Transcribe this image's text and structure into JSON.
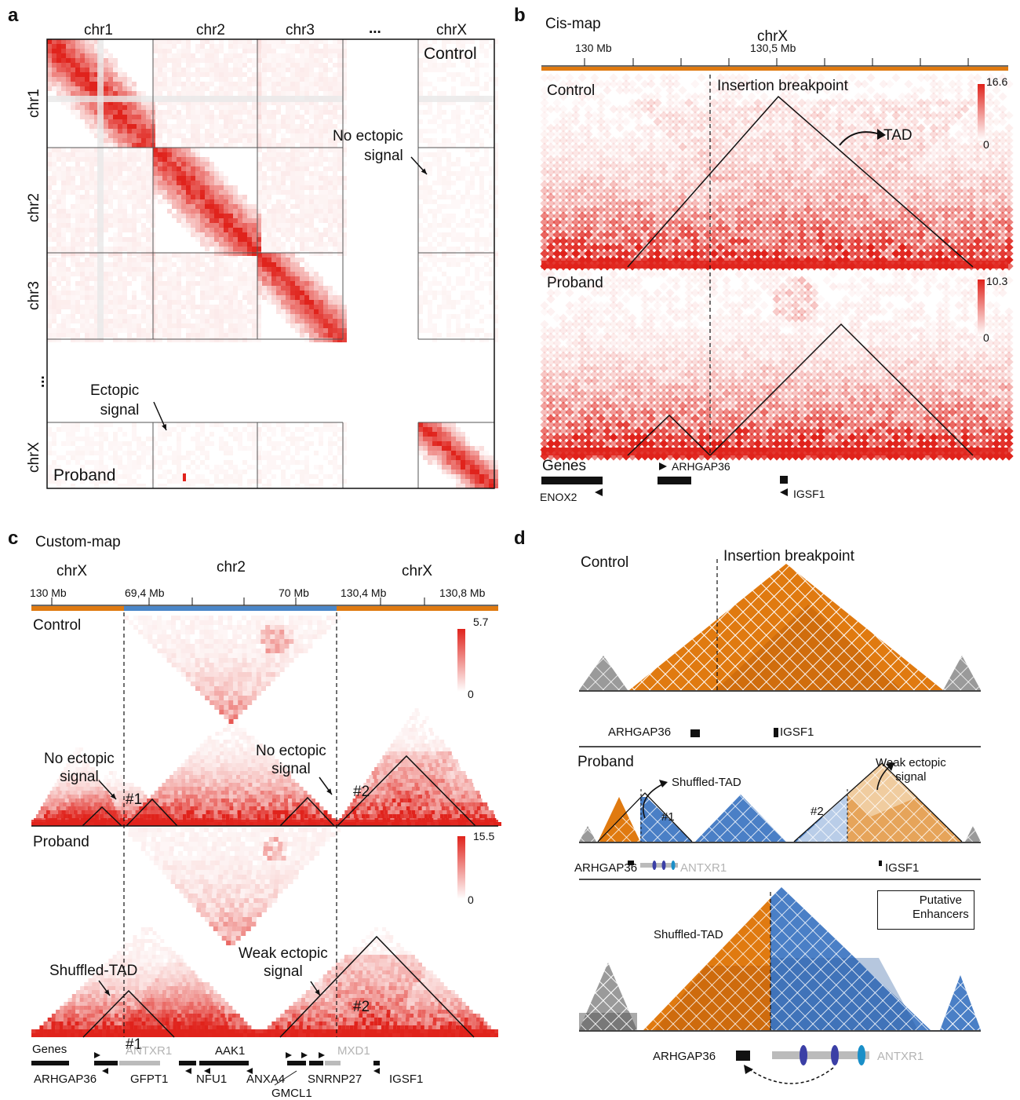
{
  "panels": {
    "a": "a",
    "b": "b",
    "c": "c",
    "d": "d"
  },
  "panel_a": {
    "top_chroms": [
      "chr1",
      "chr2",
      "chr3",
      "...",
      "chrX"
    ],
    "left_chroms": [
      "chr1",
      "chr2",
      "chr3",
      "...",
      "chrX"
    ],
    "control_label": "Control",
    "proband_label": "Proband",
    "no_ectopic_label": "No ectopic\nsignal",
    "ectopic_label": "Ectopic\nsignal"
  },
  "panel_b": {
    "title": "Cis-map",
    "chrom": "chrX",
    "ticks": [
      "130 Mb",
      "130,5 Mb"
    ],
    "control_label": "Control",
    "proband_label": "Proband",
    "breakpoint_label": "Insertion breakpoint",
    "tad_label": "TAD",
    "control_scale": {
      "max": "16.6",
      "min": "0"
    },
    "proband_scale": {
      "max": "10.3",
      "min": "0"
    },
    "genes_title": "Genes",
    "genes": [
      "ARHGAP36",
      "ENOX2",
      "IGSF1"
    ]
  },
  "panel_c": {
    "title": "Custom-map",
    "segments": [
      "chrX",
      "chr2",
      "chrX"
    ],
    "ticks": [
      "130 Mb",
      "69,4 Mb",
      "70 Mb",
      "130,4 Mb",
      "130,8 Mb"
    ],
    "control_label": "Control",
    "proband_label": "Proband",
    "control_scale": {
      "max": "5.7",
      "min": "0"
    },
    "proband_scale": {
      "max": "15.5",
      "min": "0"
    },
    "no_ectopic_1": "No ectopic\nsignal",
    "no_ectopic_2": "No ectopic\nsignal",
    "shuffled_tad": "Shuffled-TAD",
    "weak_ectopic": "Weak ectopic\nsignal",
    "tad1": "#1",
    "tad2": "#2",
    "genes_title": "Genes",
    "genes_black": [
      "ARHGAP36",
      "GFPT1",
      "NFU1",
      "AAK1",
      "ANXA4",
      "GMCL1",
      "SNRNP27",
      "IGSF1"
    ],
    "genes_gray": [
      "ANTXR1",
      "MXD1"
    ]
  },
  "panel_d": {
    "control_label": "Control",
    "proband_label": "Proband",
    "breakpoint_label": "Insertion breakpoint",
    "shuffled_tad": "Shuffled-TAD",
    "shuffled_tad_2": "Shuffled-TAD",
    "weak_ectopic": "Weak ectopic\nsignal",
    "tad1": "#1",
    "tad2": "#2",
    "genes_control": [
      "ARHGAP36",
      "IGSF1"
    ],
    "genes_proband": [
      "ARHGAP36",
      "ANTXR1",
      "IGSF1"
    ],
    "genes_zoom": [
      "ARHGAP36",
      "ANTXR1"
    ],
    "legend": "Putative\nEnhancers"
  },
  "colors": {
    "heat": "#e0231c",
    "orange": "#e07a10",
    "blue": "#4a7fc6",
    "gray_tad": "#9a9a9a",
    "axis_orange": "#e07a10",
    "axis_blue": "#4a86c8",
    "enhancer_dark": "#3b3fa6",
    "enhancer_cyan": "#1a8fc8"
  }
}
